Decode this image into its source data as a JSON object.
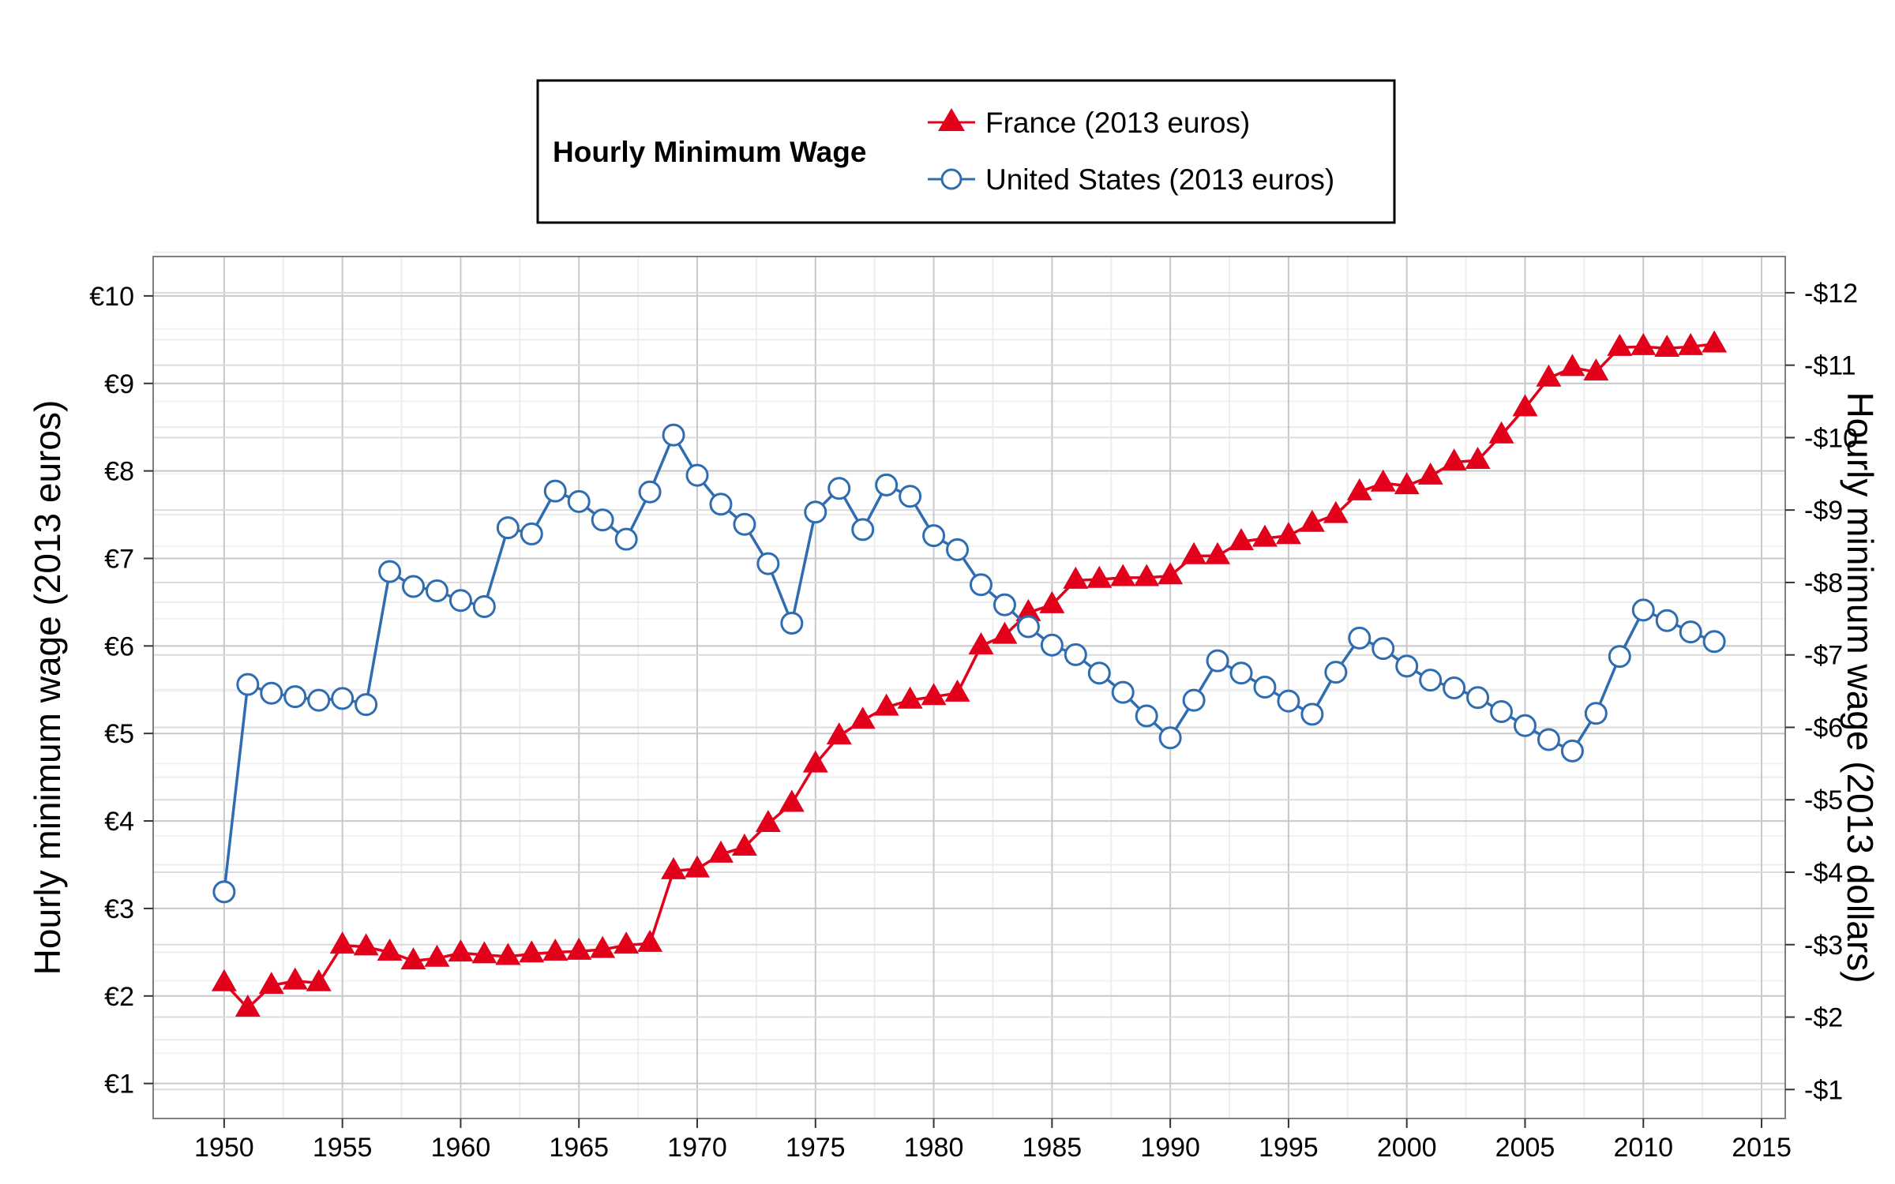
{
  "chart_data": {
    "type": "line",
    "title": "",
    "legend": {
      "title": "Hourly Minimum Wage",
      "placement": "top-center"
    },
    "xlabel": "",
    "ylabel": "Hourly minimum wage (2013 euros)",
    "y2label": "Hourly minimum wage (2013 dollars)",
    "xlim": [
      1947,
      2016
    ],
    "ylim": [
      0.6,
      10.45
    ],
    "y2lim": [
      0.6,
      12.5
    ],
    "grid": true,
    "x_ticks": [
      "1950",
      "1955",
      "1960",
      "1965",
      "1970",
      "1975",
      "1980",
      "1985",
      "1990",
      "1995",
      "2000",
      "2005",
      "2010",
      "2015"
    ],
    "y_ticks": [
      "€1",
      "€2",
      "€3",
      "€4",
      "€5",
      "€6",
      "€7",
      "€8",
      "€9",
      "€10"
    ],
    "y2_ticks": [
      "$1",
      "$2",
      "$3",
      "$4",
      "$5",
      "$6",
      "$7",
      "$8",
      "$9",
      "$10",
      "$11",
      "$12"
    ],
    "x": [
      1950,
      1951,
      1952,
      1953,
      1954,
      1955,
      1956,
      1957,
      1958,
      1959,
      1960,
      1961,
      1962,
      1963,
      1964,
      1965,
      1966,
      1967,
      1968,
      1969,
      1970,
      1971,
      1972,
      1973,
      1974,
      1975,
      1976,
      1977,
      1978,
      1979,
      1980,
      1981,
      1982,
      1983,
      1984,
      1985,
      1986,
      1987,
      1988,
      1989,
      1990,
      1991,
      1992,
      1993,
      1994,
      1995,
      1996,
      1997,
      1998,
      1999,
      2000,
      2001,
      2002,
      2003,
      2004,
      2005,
      2006,
      2007,
      2008,
      2009,
      2010,
      2011,
      2012,
      2013
    ],
    "series": [
      {
        "name": "France (2013 euros)",
        "color": "#e3001b",
        "marker": "triangle",
        "values": [
          2.15,
          1.86,
          2.12,
          2.17,
          2.15,
          2.58,
          2.56,
          2.5,
          2.4,
          2.43,
          2.49,
          2.47,
          2.45,
          2.48,
          2.5,
          2.51,
          2.53,
          2.58,
          2.6,
          3.43,
          3.45,
          3.62,
          3.7,
          3.97,
          4.2,
          4.65,
          4.97,
          5.15,
          5.3,
          5.38,
          5.42,
          5.46,
          6.0,
          6.12,
          6.38,
          6.47,
          6.75,
          6.76,
          6.78,
          6.78,
          6.8,
          7.03,
          7.03,
          7.19,
          7.23,
          7.26,
          7.4,
          7.5,
          7.76,
          7.86,
          7.83,
          7.94,
          8.1,
          8.12,
          8.41,
          8.72,
          9.06,
          9.18,
          9.13,
          9.41,
          9.42,
          9.4,
          9.42,
          9.45
        ]
      },
      {
        "name": "United States (2013 euros)",
        "color": "#2f6db0",
        "marker": "circle",
        "values": [
          3.19,
          5.56,
          5.46,
          5.42,
          5.38,
          5.4,
          5.33,
          6.85,
          6.68,
          6.63,
          6.52,
          6.45,
          7.35,
          7.28,
          7.77,
          7.65,
          7.44,
          7.22,
          7.76,
          8.41,
          7.95,
          7.62,
          7.39,
          6.94,
          6.26,
          7.53,
          7.8,
          7.33,
          7.84,
          7.71,
          7.26,
          7.1,
          6.7,
          6.47,
          6.22,
          6.01,
          5.9,
          5.69,
          5.47,
          5.2,
          4.95,
          5.38,
          5.83,
          5.69,
          5.53,
          5.37,
          5.22,
          5.7,
          6.09,
          5.97,
          5.77,
          5.61,
          5.52,
          5.41,
          5.25,
          5.09,
          4.93,
          4.8,
          5.23,
          5.88,
          6.41,
          6.29,
          6.16,
          6.05
        ]
      }
    ]
  }
}
